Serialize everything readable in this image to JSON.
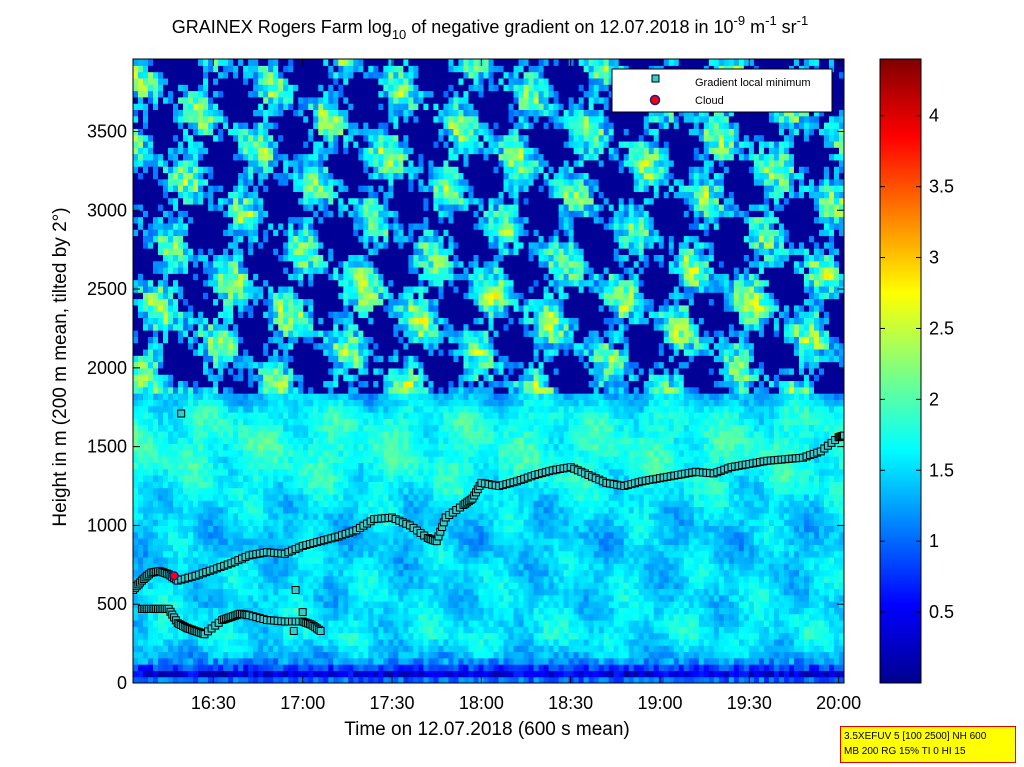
{
  "chart_data": {
    "type": "heatmap",
    "title": {
      "prefix": "GRAINEX Rogers Farm log",
      "prefix_sub": "10",
      "middle": " of negative gradient on 12.07.2018 in 10",
      "unit_exp1": "-9",
      "unit_m": " m",
      "unit_exp2": "-1",
      "unit_sr": " sr",
      "unit_exp3": "-1"
    },
    "xlabel": "Time on 12.07.2018 (600 s mean)",
    "ylabel": "Height in m (200 m mean, tilted by 2°)",
    "x_ticks": [
      "16:30",
      "17:00",
      "17:30",
      "18:00",
      "18:30",
      "19:00",
      "19:30",
      "20:00"
    ],
    "x_tick_hours": [
      16.5,
      17.0,
      17.5,
      18.0,
      18.5,
      19.0,
      19.5,
      20.0
    ],
    "xlim_hours": [
      16.05,
      20.03
    ],
    "y_ticks": [
      0,
      500,
      1000,
      1500,
      2000,
      2500,
      3000,
      3500
    ],
    "ylim": [
      0,
      3960
    ],
    "colorbar": {
      "range": [
        0,
        4.4
      ],
      "ticks": [
        0.5,
        1,
        1.5,
        2,
        2.5,
        3,
        3.5,
        4
      ],
      "tick_labels": [
        "0.5",
        "1",
        "1.5",
        "2",
        "2.5",
        "3",
        "3.5",
        "4"
      ],
      "colormap": "jet"
    },
    "legend": {
      "placement": "top-right",
      "entries": [
        {
          "label": "Gradient local minimum",
          "marker": "square",
          "color": "#33cccc"
        },
        {
          "label": "Cloud",
          "marker": "circle",
          "color": "#ff0000"
        }
      ]
    },
    "mean_field": {
      "note_levels": "approximate log10 gradient by height",
      "heights": [
        0,
        60,
        100,
        150,
        300,
        500,
        700,
        900,
        1100,
        1300,
        1500,
        1700,
        1900,
        2000,
        2200,
        2500,
        2800,
        3100,
        3400,
        3700,
        3960
      ],
      "values": [
        1.3,
        0.4,
        0.8,
        1.3,
        1.6,
        1.5,
        1.5,
        1.4,
        1.5,
        1.7,
        1.8,
        1.7,
        1.2,
        1.0,
        1.2,
        1.3,
        1.0,
        1.1,
        1.2,
        1.1,
        1.0
      ]
    },
    "gradient_minimum_series": {
      "name": "Gradient local minimum",
      "x_hours": [
        16.05,
        16.1,
        16.15,
        16.2,
        16.25,
        16.3,
        16.4,
        16.5,
        16.6,
        16.7,
        16.8,
        16.9,
        17.0,
        17.1,
        17.2,
        17.3,
        17.4,
        17.5,
        17.6,
        17.7,
        17.75,
        17.8,
        17.9,
        17.95,
        18.0,
        18.1,
        18.2,
        18.3,
        18.4,
        18.5,
        18.6,
        18.7,
        18.8,
        18.9,
        19.0,
        19.1,
        19.2,
        19.3,
        19.4,
        19.5,
        19.6,
        19.7,
        19.8,
        19.9,
        20.0,
        20.03
      ],
      "y": [
        590,
        650,
        700,
        710,
        690,
        650,
        680,
        720,
        760,
        810,
        830,
        820,
        870,
        900,
        930,
        970,
        1040,
        1050,
        1000,
        920,
        900,
        1050,
        1130,
        1170,
        1270,
        1250,
        1280,
        1320,
        1350,
        1370,
        1320,
        1270,
        1250,
        1280,
        1300,
        1320,
        1340,
        1330,
        1370,
        1390,
        1410,
        1420,
        1430,
        1470,
        1560,
        1570
      ],
      "lower_x_hours": [
        16.1,
        16.15,
        16.2,
        16.25,
        16.3,
        16.35,
        16.4,
        16.45,
        16.55,
        16.6,
        16.65,
        16.7,
        16.8,
        16.9,
        17.0,
        17.05,
        17.1
      ],
      "lower_y": [
        470,
        470,
        470,
        470,
        380,
        350,
        330,
        310,
        400,
        420,
        440,
        430,
        400,
        390,
        390,
        370,
        330
      ],
      "isolated_x_hours": [
        16.32,
        16.96,
        17.0,
        16.95
      ],
      "isolated_y": [
        1710,
        590,
        450,
        330
      ]
    },
    "cloud_series": {
      "name": "Cloud",
      "x_hours": [
        16.28
      ],
      "y": [
        680
      ]
    }
  },
  "info_box": {
    "line1": "3.5XEFUV 5 [100 2500] NH 600",
    "line2": "MB 200 RG 15% TI 0 HI 15"
  },
  "colors": {
    "marker_fill": "#33cccc",
    "marker_edge": "#000000",
    "cloud_fill": "#ff0000",
    "cloud_edge": "#1a1aa0",
    "info_bg": "#ffff00",
    "info_border": "#e00000"
  }
}
